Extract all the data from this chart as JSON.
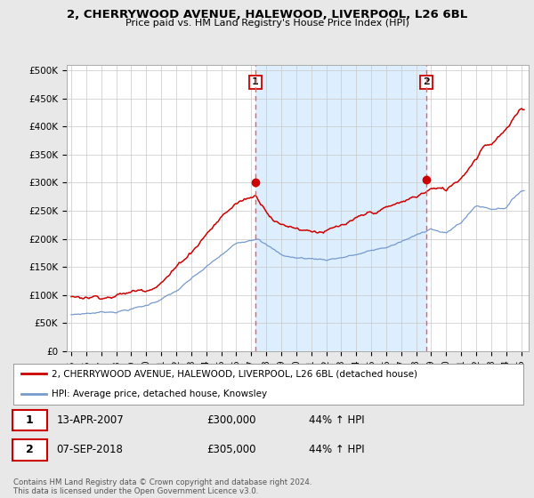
{
  "title": "2, CHERRYWOOD AVENUE, HALEWOOD, LIVERPOOL, L26 6BL",
  "subtitle": "Price paid vs. HM Land Registry's House Price Index (HPI)",
  "bg_color": "#e8e8e8",
  "plot_bg_color": "#ffffff",
  "red_line_color": "#cc0000",
  "blue_line_color": "#7799cc",
  "dashed_line_color": "#ff5555",
  "shade_color": "#ddeeff",
  "sale1_date_x": 2007.28,
  "sale1_price": 300000,
  "sale2_date_x": 2018.68,
  "sale2_price": 305000,
  "ylim": [
    0,
    510000
  ],
  "xlim": [
    1994.7,
    2025.5
  ],
  "yticks": [
    0,
    50000,
    100000,
    150000,
    200000,
    250000,
    300000,
    350000,
    400000,
    450000,
    500000
  ],
  "ytick_labels": [
    "£0",
    "£50K",
    "£100K",
    "£150K",
    "£200K",
    "£250K",
    "£300K",
    "£350K",
    "£400K",
    "£450K",
    "£500K"
  ],
  "xticks": [
    1995,
    1996,
    1997,
    1998,
    1999,
    2000,
    2001,
    2002,
    2003,
    2004,
    2005,
    2006,
    2007,
    2008,
    2009,
    2010,
    2011,
    2012,
    2013,
    2014,
    2015,
    2016,
    2017,
    2018,
    2019,
    2020,
    2021,
    2022,
    2023,
    2024,
    2025
  ],
  "legend_red_label": "2, CHERRYWOOD AVENUE, HALEWOOD, LIVERPOOL, L26 6BL (detached house)",
  "legend_blue_label": "HPI: Average price, detached house, Knowsley",
  "table_row1": [
    "1",
    "13-APR-2007",
    "£300,000",
    "44% ↑ HPI"
  ],
  "table_row2": [
    "2",
    "07-SEP-2018",
    "£305,000",
    "44% ↑ HPI"
  ],
  "footer_text": "Contains HM Land Registry data © Crown copyright and database right 2024.\nThis data is licensed under the Open Government Licence v3.0."
}
